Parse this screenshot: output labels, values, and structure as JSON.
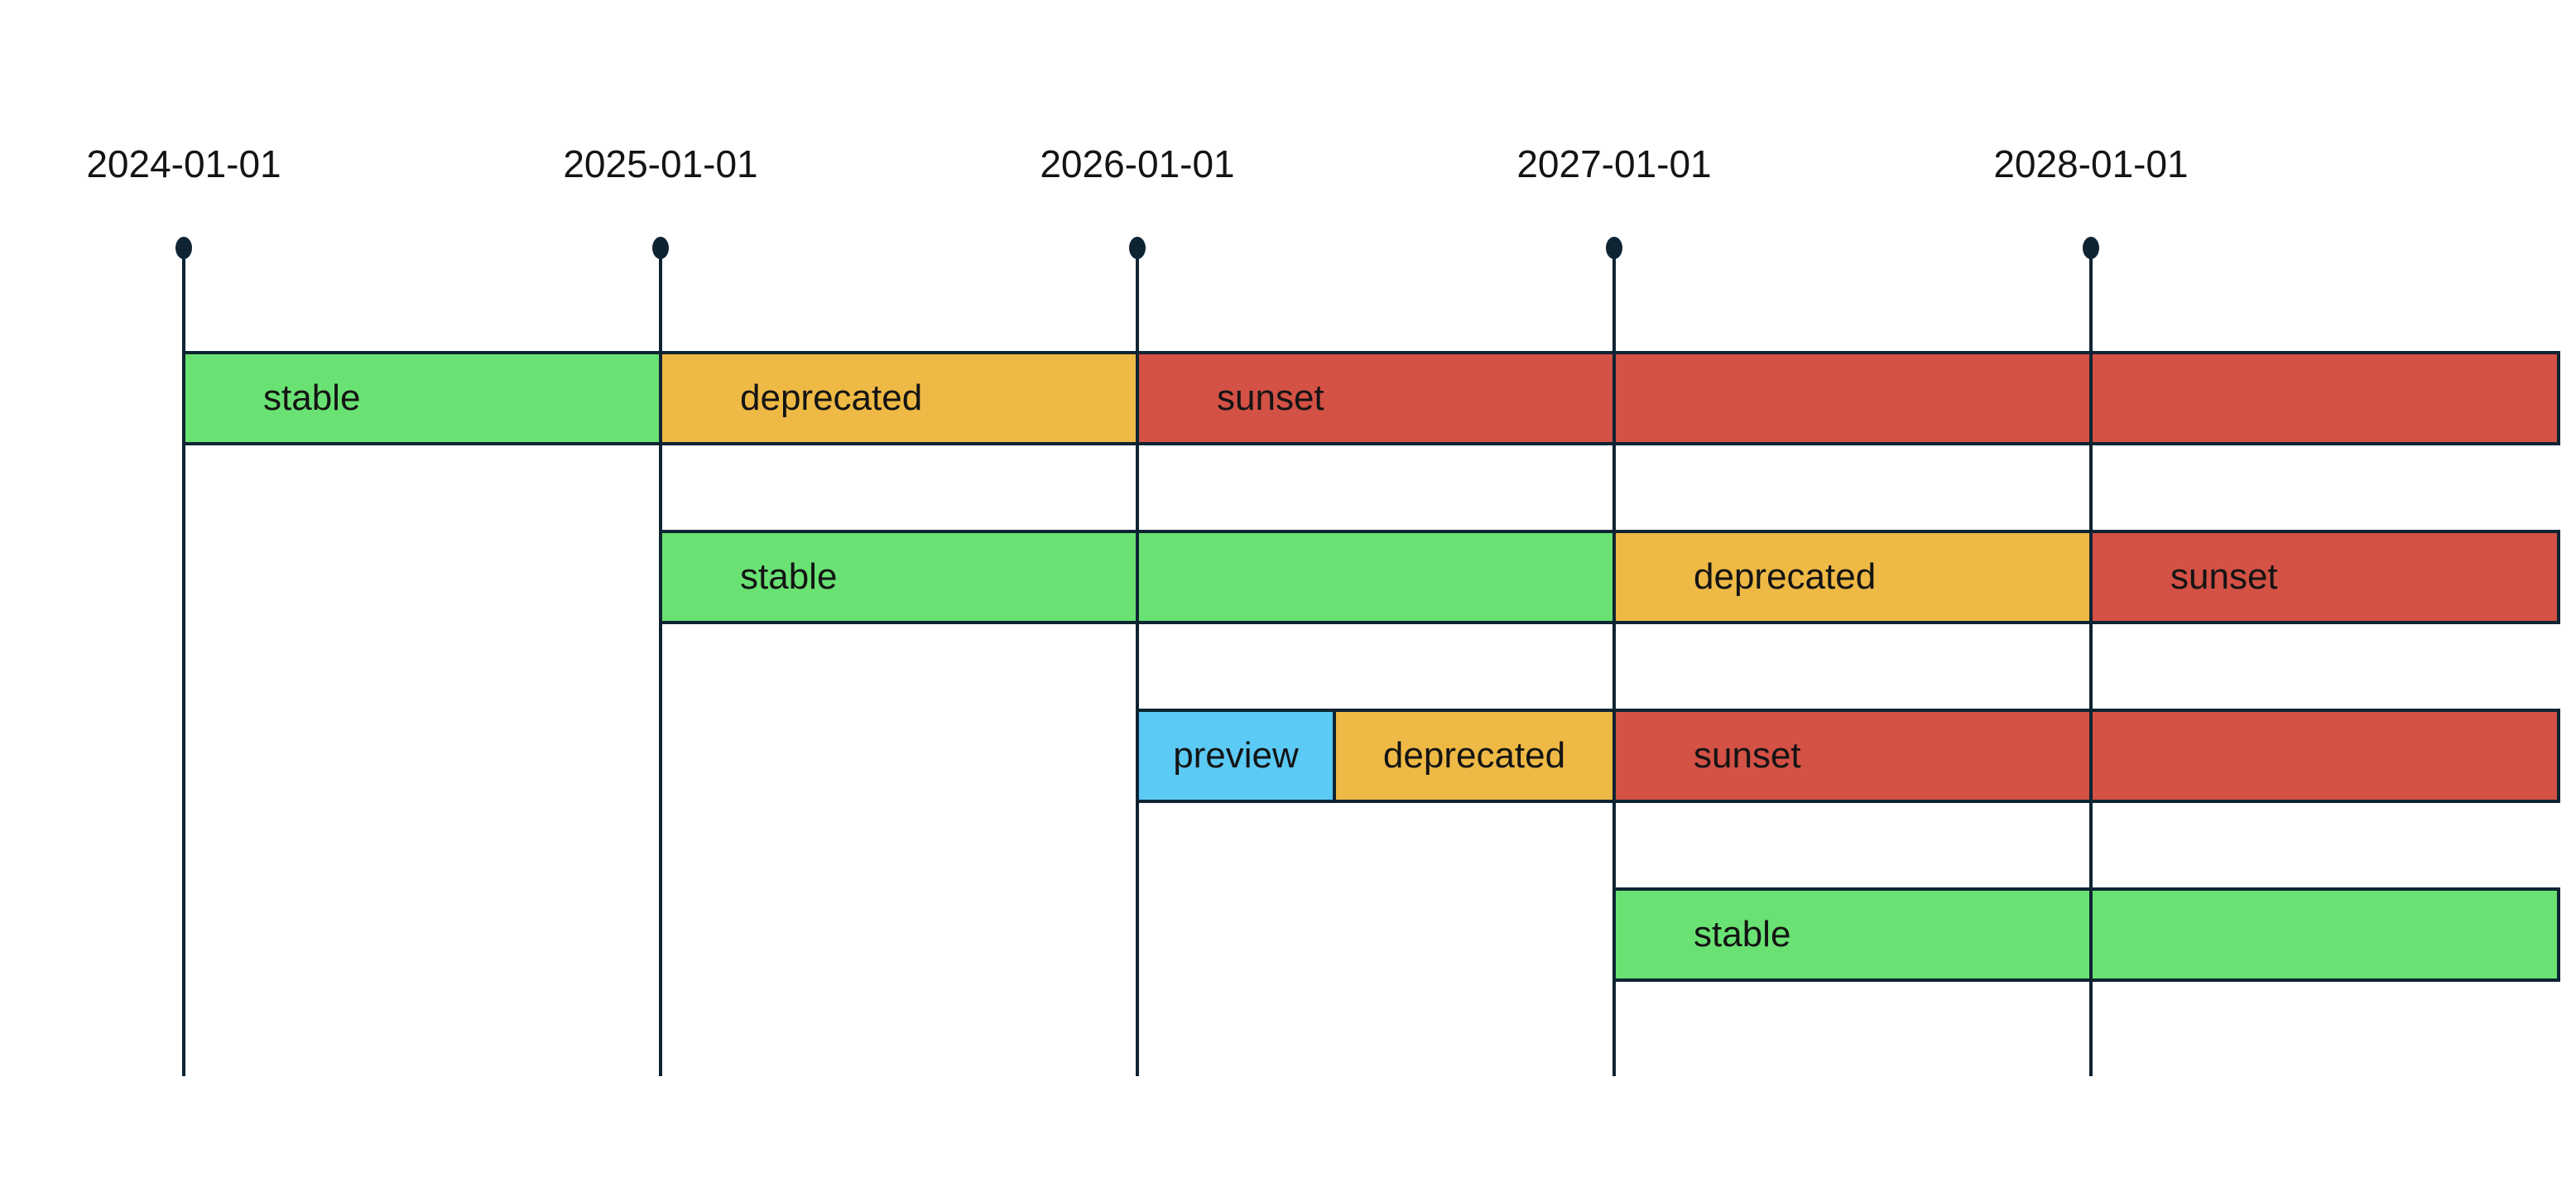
{
  "page": {
    "background": "#ffffff"
  },
  "chart_data": {
    "type": "timeline",
    "title": "",
    "axis": {
      "orientation": "horizontal-top",
      "tick_labels": [
        "2024-01-01",
        "2025-01-01",
        "2026-01-01",
        "2027-01-01",
        "2028-01-01"
      ],
      "tick_marker": "dot-with-vertical-line"
    },
    "phase_colors": {
      "stable": "#69e273",
      "preview": "#5bcaf5",
      "deprecated": "#eeb944",
      "sunset": "#d35145"
    },
    "line_color": "#0f2433",
    "text_color": "#141414",
    "grid": "vertical-lines-over-bars",
    "legend_position": "none",
    "rows": [
      {
        "phases": [
          {
            "label": "stable",
            "start": "2024-01-01",
            "end": "2025-01-01"
          },
          {
            "label": "deprecated",
            "start": "2025-01-01",
            "end": "2026-01-01"
          },
          {
            "label": "sunset",
            "start": "2026-01-01",
            "end": null
          }
        ]
      },
      {
        "phases": [
          {
            "label": "stable",
            "start": "2025-01-01",
            "end": "2027-01-01"
          },
          {
            "label": "deprecated",
            "start": "2027-01-01",
            "end": "2028-01-01"
          },
          {
            "label": "sunset",
            "start": "2028-01-01",
            "end": null
          }
        ]
      },
      {
        "phases": [
          {
            "label": "preview",
            "start": "2026-01-01",
            "end": "2026-06-01"
          },
          {
            "label": "deprecated",
            "start": "2026-06-01",
            "end": "2027-01-01"
          },
          {
            "label": "sunset",
            "start": "2027-01-01",
            "end": null
          }
        ]
      },
      {
        "phases": [
          {
            "label": "stable",
            "start": "2027-01-01",
            "end": null
          }
        ]
      }
    ]
  }
}
